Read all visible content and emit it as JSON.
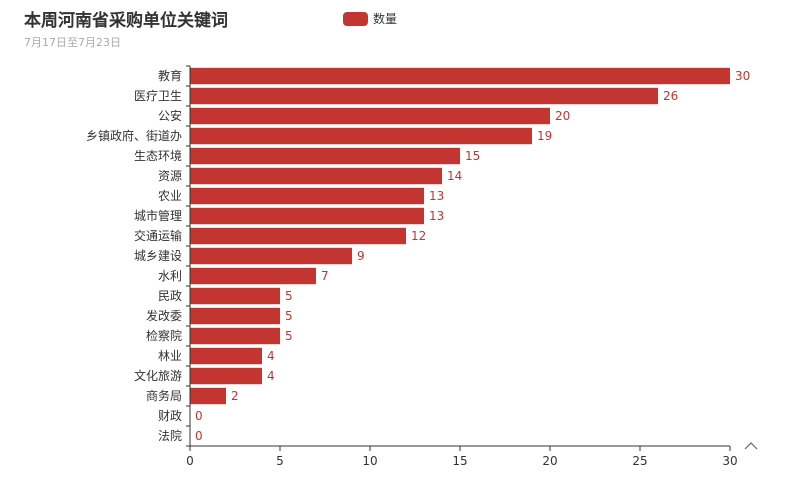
{
  "chart_data": {
    "type": "bar",
    "orientation": "horizontal",
    "title": "本周河南省采购单位关键词",
    "subtitle": "7月17日至7月23日",
    "legend": [
      "数量"
    ],
    "legend_position": "top-center",
    "categories": [
      "教育",
      "医疗卫生",
      "公安",
      "乡镇政府、街道办",
      "生态环境",
      "资源",
      "农业",
      "城市管理",
      "交通运输",
      "城乡建设",
      "水利",
      "民政",
      "发改委",
      "检察院",
      "林业",
      "文化旅游",
      "商务局",
      "财政",
      "法院"
    ],
    "series": [
      {
        "name": "数量",
        "values": [
          30,
          26,
          20,
          19,
          15,
          14,
          13,
          13,
          12,
          9,
          7,
          5,
          5,
          5,
          4,
          4,
          2,
          0,
          0
        ]
      }
    ],
    "xlim": [
      0,
      30
    ],
    "xticks": [
      0,
      5,
      10,
      15,
      20,
      25,
      30
    ],
    "grid": false,
    "data_labels": true,
    "bar_color": "#c23531"
  },
  "toolbar": {
    "expand_icon": "caret-up-icon"
  }
}
